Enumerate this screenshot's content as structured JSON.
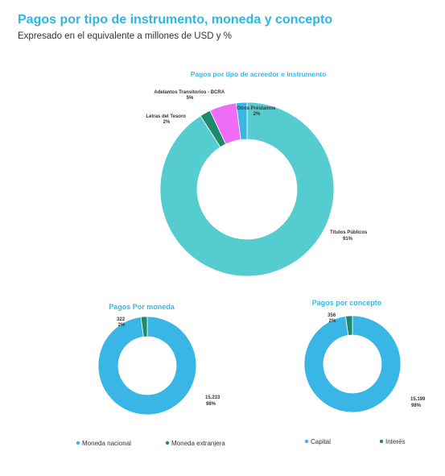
{
  "header": {
    "title": "Pagos por tipo de instrumento, moneda y concepto",
    "subtitle": "Expresado en el equivalente a millones de USD y %"
  },
  "colors": {
    "title_blue": "#29b7e3",
    "teal": "#55cdd0",
    "sky_blue": "#3ab6e6",
    "magenta": "#ee6cf7",
    "dark_green": "#1e8a6b"
  },
  "chart_data": [
    {
      "type": "pie",
      "title": "Pagos por tipo de acreedor e instrumento",
      "slices": [
        {
          "label": "Títulos Públicos",
          "pct_label": "91%",
          "value": 91,
          "color": "#55cdd0"
        },
        {
          "label": "Letras del Tesoro",
          "pct_label": "2%",
          "value": 2,
          "color": "#3ab6e6"
        },
        {
          "label": "Adelantos Transitorios - BCRA",
          "pct_label": "5%",
          "value": 5,
          "color": "#ee6cf7"
        },
        {
          "label": "Otros Préstamos",
          "pct_label": "2%",
          "value": 2,
          "color": "#1e8a6b"
        }
      ]
    },
    {
      "type": "pie",
      "title": "Pagos Por moneda",
      "slices": [
        {
          "label": "Moneda nacional",
          "value_label": "15.233",
          "pct_label": "98%",
          "value": 15233,
          "color": "#3ab6e6"
        },
        {
          "label": "Moneda extranjera",
          "value_label": "322",
          "pct_label": "2%",
          "value": 322,
          "color": "#1e8a6b"
        }
      ],
      "legend": [
        "Moneda nacional",
        "Moneda extranjera"
      ]
    },
    {
      "type": "pie",
      "title": "Pagos por concepto",
      "slices": [
        {
          "label": "Capital",
          "value_label": "15.199",
          "pct_label": "98%",
          "value": 15199,
          "color": "#3ab6e6"
        },
        {
          "label": "Interés",
          "value_label": "356",
          "pct_label": "2%",
          "value": 356,
          "color": "#1e8a6b"
        }
      ],
      "legend": [
        "Capital",
        "Interés"
      ]
    }
  ]
}
